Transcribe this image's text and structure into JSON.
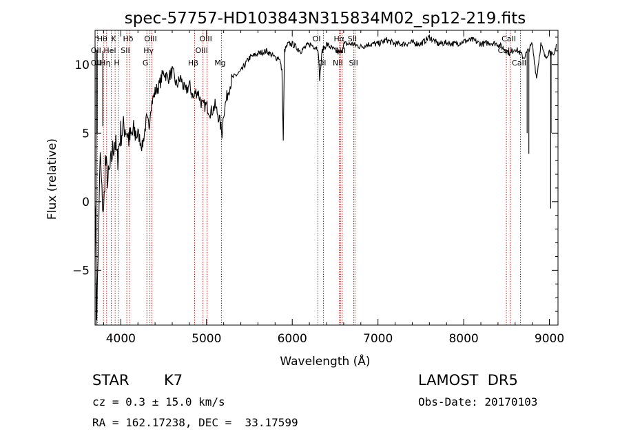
{
  "chart_data": {
    "type": "line",
    "title": "spec-57757-HD103843N315834M02_sp12-219.fits",
    "xlabel": "Wavelength (Å)",
    "ylabel": "Flux (relative)",
    "xlim": [
      3700,
      9100
    ],
    "ylim": [
      -9,
      12.5
    ],
    "xticks": [
      4000,
      5000,
      6000,
      7000,
      8000,
      9000
    ],
    "yticks": [
      -5,
      0,
      5,
      10
    ],
    "xtick_labels": [
      "4000",
      "5000",
      "6000",
      "7000",
      "8000",
      "9000"
    ],
    "ytick_labels": [
      "−5",
      "0",
      "5",
      "10"
    ],
    "series": [
      {
        "x": [
          3700,
          3720,
          3740,
          3760,
          3780,
          3800,
          3820,
          3850,
          3880,
          3900,
          3930,
          3960,
          4000,
          4050,
          4100,
          4150,
          4200,
          4250,
          4300,
          4330,
          4350,
          4400,
          4450,
          4500,
          4550,
          4600,
          4650,
          4700,
          4750,
          4800,
          4850,
          4870,
          4900,
          4950,
          5000,
          5050,
          5100,
          5150,
          5180,
          5200,
          5250,
          5300,
          5400,
          5500,
          5600,
          5700,
          5800,
          5850,
          5880,
          5895,
          5910,
          5950,
          6000,
          6100,
          6200,
          6300,
          6320,
          6350,
          6400,
          6500,
          6563,
          6600,
          6700,
          6800,
          6900,
          7000,
          7100,
          7200,
          7300,
          7400,
          7500,
          7600,
          7700,
          7800,
          7900,
          8000,
          8100,
          8200,
          8300,
          8400,
          8500,
          8542,
          8600,
          8662,
          8700,
          8750,
          8800,
          8850,
          8900,
          8950,
          9000,
          9050,
          9080
        ],
        "y": [
          1.0,
          -8.0,
          -3.0,
          3.5,
          0.5,
          -1.0,
          3.0,
          1.5,
          2.5,
          3.5,
          4.5,
          3.0,
          5.0,
          5.5,
          4.5,
          5.0,
          5.0,
          4.0,
          6.0,
          5.5,
          7.0,
          8.0,
          8.5,
          9.5,
          9.0,
          9.5,
          8.5,
          9.0,
          8.0,
          8.5,
          7.5,
          8.0,
          8.0,
          7.0,
          7.0,
          6.5,
          7.0,
          6.0,
          5.0,
          6.5,
          8.0,
          9.0,
          9.5,
          10.5,
          10.8,
          11.0,
          10.5,
          10.5,
          9.5,
          4.5,
          11.0,
          11.5,
          11.5,
          11.0,
          11.5,
          11.2,
          9.0,
          11.0,
          11.5,
          11.0,
          10.8,
          11.5,
          11.5,
          11.3,
          11.5,
          11.5,
          11.8,
          11.5,
          11.5,
          11.6,
          11.5,
          12.0,
          11.5,
          11.6,
          11.5,
          11.7,
          11.8,
          11.5,
          11.6,
          11.5,
          11.0,
          10.8,
          11.2,
          10.8,
          10.5,
          11.0,
          11.5,
          9.0,
          11.5,
          10.5,
          11.0,
          10.5,
          11.5
        ]
      }
    ],
    "lines": [
      {
        "label": "Hθ",
        "x": 3798,
        "row": 0
      },
      {
        "label": "K",
        "x": 3934,
        "row": 0
      },
      {
        "label": "Hδ",
        "x": 4102,
        "row": 0
      },
      {
        "label": "OIII",
        "x": 4363,
        "row": 0
      },
      {
        "label": "OIII",
        "x": 5007,
        "row": 0
      },
      {
        "label": "OI",
        "x": 6300,
        "row": 0
      },
      {
        "label": "Hα",
        "x": 6563,
        "row": 0
      },
      {
        "label": "SII",
        "x": 6717,
        "row": 0
      },
      {
        "label": "CaII",
        "x": 8542,
        "row": 0
      },
      {
        "label": "OII",
        "x": 3727,
        "row": 1
      },
      {
        "label": "HeI",
        "x": 3889,
        "row": 1
      },
      {
        "label": "SII",
        "x": 4070,
        "row": 1
      },
      {
        "label": "Hγ",
        "x": 4340,
        "row": 1
      },
      {
        "label": "OIII",
        "x": 4959,
        "row": 1
      },
      {
        "label": "NII",
        "x": 6583,
        "row": 1
      },
      {
        "label": "CaII",
        "x": 8498,
        "row": 1
      },
      {
        "label": "OII",
        "x": 3727,
        "row": 2
      },
      {
        "label": "Hη",
        "x": 3835,
        "row": 2
      },
      {
        "label": "H",
        "x": 3969,
        "row": 2
      },
      {
        "label": "G",
        "x": 4304,
        "row": 2
      },
      {
        "label": "Hβ",
        "x": 4861,
        "row": 2
      },
      {
        "label": "Mg",
        "x": 5175,
        "row": 2
      },
      {
        "label": "OI",
        "x": 6364,
        "row": 2
      },
      {
        "label": "NII",
        "x": 6548,
        "row": 2
      },
      {
        "label": "SII",
        "x": 6731,
        "row": 2
      },
      {
        "label": "CaII",
        "x": 8662,
        "row": 2
      }
    ],
    "line_color": "#d00000"
  },
  "info": {
    "class_label": "STAR",
    "subclass": "K7",
    "survey": "LAMOST  DR5",
    "cz": "cz = 0.3 ± 15.0 km/s",
    "obs_date": "Obs-Date: 20170103",
    "coords": "RA = 162.17238, DEC =  33.17599"
  }
}
